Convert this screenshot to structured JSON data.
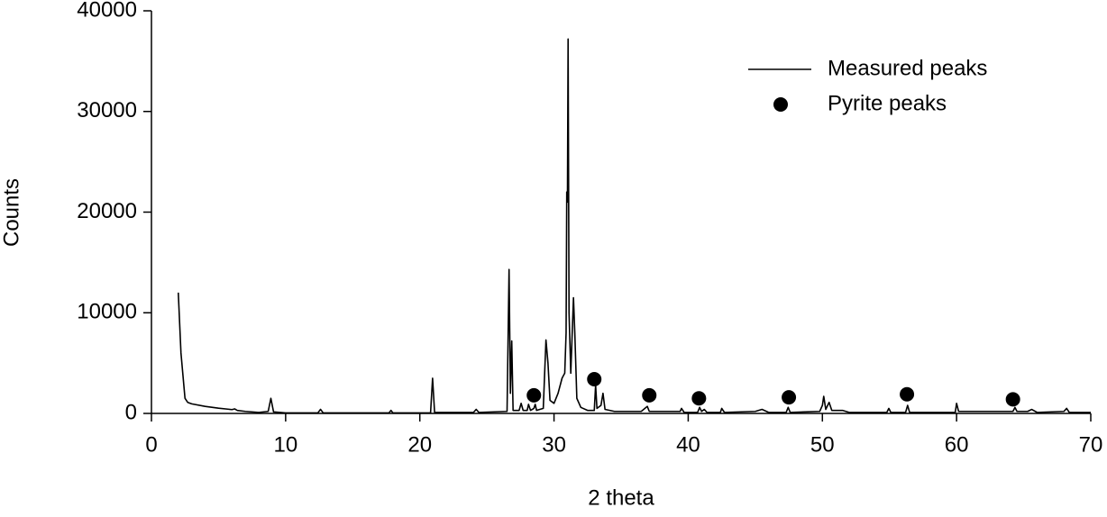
{
  "chart_data": {
    "type": "line",
    "xlabel": "2 theta",
    "ylabel": "Counts",
    "xlim": [
      0,
      70
    ],
    "xticks": [
      0,
      10,
      20,
      30,
      40,
      50,
      60,
      70
    ],
    "ylim": [
      0,
      40000
    ],
    "yticks": [
      0,
      10000,
      20000,
      30000,
      40000
    ],
    "legend": "upper right",
    "series": [
      {
        "name": "Measured peaks",
        "style": "line",
        "color": "#000000",
        "x": [
          2.0,
          2.2,
          2.5,
          2.7,
          3,
          4,
          5,
          6,
          6.2,
          6.4,
          7,
          8,
          8.7,
          8.9,
          9.1,
          10,
          12.4,
          12.6,
          12.8,
          17.7,
          17.85,
          18,
          20.8,
          20.95,
          21.1,
          24,
          24.2,
          24.4,
          26.5,
          26.65,
          26.75,
          26.85,
          26.95,
          27.4,
          27.55,
          27.7,
          28,
          28.1,
          28.25,
          28.5,
          28.6,
          28.7,
          29.2,
          29.4,
          29.55,
          29.7,
          30,
          30.3,
          30.6,
          30.8,
          30.9,
          30.95,
          31.0,
          31.05,
          31.12,
          31.25,
          31.45,
          31.55,
          31.7,
          32,
          32.5,
          33.0,
          33.1,
          33.2,
          33.5,
          33.65,
          33.8,
          34.5,
          36.5,
          36.95,
          37.1,
          39.4,
          39.5,
          39.7,
          40.7,
          40.85,
          41.0,
          41.2,
          41.4,
          42.4,
          42.5,
          42.7,
          45,
          45.5,
          46,
          47.3,
          47.45,
          47.6,
          49.8,
          50.0,
          50.1,
          50.25,
          50.5,
          50.7,
          51.5,
          52,
          54.8,
          54.95,
          55.1,
          56.2,
          56.35,
          56.5,
          59.9,
          60.0,
          60.15,
          64.2,
          64.35,
          64.5,
          65.3,
          65.6,
          66,
          68,
          68.2,
          68.4,
          69,
          70
        ],
        "values": [
          12000,
          6000,
          1500,
          1100,
          950,
          700,
          520,
          380,
          450,
          300,
          200,
          100,
          200,
          1500,
          150,
          50,
          50,
          400,
          50,
          50,
          300,
          50,
          50,
          3500,
          100,
          100,
          400,
          100,
          200,
          14300,
          2000,
          7200,
          300,
          300,
          1000,
          300,
          300,
          900,
          300,
          500,
          900,
          300,
          500,
          7300,
          5000,
          1300,
          1000,
          2000,
          3500,
          4000,
          8000,
          22000,
          21000,
          37200,
          10000,
          4000,
          11500,
          8000,
          1500,
          600,
          300,
          300,
          2800,
          500,
          800,
          2000,
          400,
          200,
          200,
          700,
          200,
          200,
          500,
          100,
          100,
          600,
          200,
          400,
          100,
          100,
          500,
          100,
          200,
          400,
          100,
          100,
          600,
          100,
          200,
          800,
          1700,
          400,
          1100,
          300,
          300,
          100,
          100,
          500,
          100,
          100,
          800,
          100,
          100,
          1000,
          200,
          200,
          600,
          200,
          200,
          400,
          100,
          200,
          500,
          100,
          100,
          100
        ]
      },
      {
        "name": "Pyrite peaks",
        "style": "marker",
        "color": "#000000",
        "x": [
          28.5,
          33.0,
          37.1,
          40.8,
          47.5,
          56.3,
          64.2
        ],
        "values": [
          1800,
          3400,
          1800,
          1500,
          1600,
          1900,
          1400
        ]
      }
    ]
  }
}
